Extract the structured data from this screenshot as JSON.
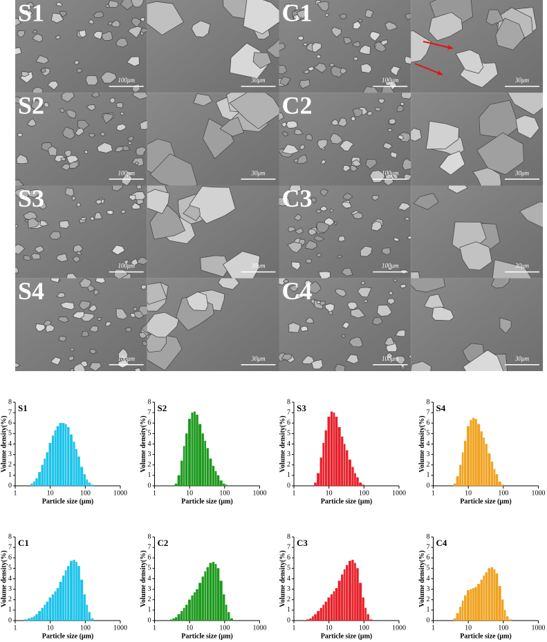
{
  "sem_panels": [
    {
      "label": "S1",
      "scale_bars": [
        "100μm",
        "30μm"
      ]
    },
    {
      "label": "C1",
      "scale_bars": [
        "100μm",
        "30μm"
      ]
    },
    {
      "label": "S2",
      "scale_bars": [
        "100μm",
        "30μm"
      ]
    },
    {
      "label": "C2",
      "scale_bars": [
        "100μm",
        "30μm"
      ]
    },
    {
      "label": "S3",
      "scale_bars": [
        "100μm",
        "30μm"
      ]
    },
    {
      "label": "C3",
      "scale_bars": [
        "100μm",
        "30μm"
      ]
    },
    {
      "label": "S4",
      "scale_bars": [
        "100μm",
        "30μm"
      ]
    },
    {
      "label": "C4",
      "scale_bars": [
        "100μm",
        "30μm"
      ]
    }
  ],
  "chart_data": [
    {
      "type": "bar",
      "title": "S1",
      "xscale": "log",
      "color": "#1cc3ea",
      "xlabel": "Particle size (μm)",
      "ylabel": "Volume density(%)",
      "xlim": [
        1,
        1000
      ],
      "xticks": [
        1,
        10,
        100,
        1000
      ],
      "ylim": [
        0,
        8
      ],
      "yticks": [
        0,
        1,
        2,
        3,
        4,
        5,
        6,
        7,
        8
      ],
      "x": [
        2,
        2.5,
        3,
        3.5,
        4,
        5,
        6,
        7,
        8,
        10,
        12,
        14,
        16,
        20,
        24,
        28,
        32,
        40,
        48,
        56,
        64,
        80,
        96,
        112,
        128,
        160,
        192,
        240,
        300
      ],
      "values": [
        0,
        0,
        0.2,
        0.4,
        0.7,
        1.3,
        2,
        2.6,
        3.2,
        4.1,
        4.8,
        5.3,
        5.7,
        6.0,
        6.0,
        5.9,
        5.6,
        4.9,
        4.2,
        3.5,
        2.8,
        1.8,
        1.1,
        0.6,
        0.3,
        0.1,
        0,
        0,
        0
      ]
    },
    {
      "type": "bar",
      "title": "S2",
      "xscale": "log",
      "color": "#1b9a1b",
      "xlabel": "Particle size (μm)",
      "ylabel": "Volume density(%)",
      "xlim": [
        1,
        1000
      ],
      "xticks": [
        1,
        10,
        100,
        1000
      ],
      "ylim": [
        0,
        8
      ],
      "yticks": [
        0,
        1,
        2,
        3,
        4,
        5,
        6,
        7,
        8
      ],
      "x": [
        2,
        2.5,
        3,
        3.5,
        4,
        5,
        6,
        7,
        8,
        10,
        12,
        14,
        16,
        20,
        24,
        28,
        32,
        40,
        48,
        56,
        64,
        80,
        96,
        112,
        128,
        160,
        192,
        240,
        300
      ],
      "values": [
        0,
        0,
        0,
        0,
        0.2,
        1.0,
        2.4,
        3.8,
        5.0,
        6.4,
        7.0,
        7.1,
        6.8,
        5.9,
        5.0,
        4.3,
        3.6,
        2.6,
        1.9,
        1.4,
        1.0,
        0.5,
        0.2,
        0.1,
        0,
        0,
        0,
        0,
        0
      ]
    },
    {
      "type": "bar",
      "title": "S3",
      "xscale": "log",
      "color": "#e8202a",
      "xlabel": "Particle size (μm)",
      "ylabel": "Volume density(%)",
      "xlim": [
        1,
        1000
      ],
      "xticks": [
        1,
        10,
        100,
        1000
      ],
      "ylim": [
        0,
        8
      ],
      "yticks": [
        0,
        1,
        2,
        3,
        4,
        5,
        6,
        7,
        8
      ],
      "x": [
        2,
        2.5,
        3,
        3.5,
        4,
        5,
        6,
        7,
        8,
        10,
        12,
        14,
        16,
        20,
        24,
        28,
        32,
        40,
        48,
        56,
        64,
        80,
        96,
        112,
        128,
        160,
        192,
        240,
        300
      ],
      "values": [
        0,
        0,
        0,
        0,
        0.3,
        1.2,
        2.7,
        4.1,
        5.3,
        6.6,
        7.1,
        7.0,
        6.6,
        5.6,
        4.7,
        4.0,
        3.4,
        2.5,
        1.8,
        1.2,
        0.8,
        0.3,
        0.1,
        0,
        0,
        0,
        0,
        0,
        0
      ]
    },
    {
      "type": "bar",
      "title": "S4",
      "xscale": "log",
      "color": "#f0a21e",
      "xlabel": "Particle size (μm)",
      "ylabel": "Volume density(%)",
      "xlim": [
        1,
        1000
      ],
      "xticks": [
        1,
        10,
        100,
        1000
      ],
      "ylim": [
        0,
        8
      ],
      "yticks": [
        0,
        1,
        2,
        3,
        4,
        5,
        6,
        7,
        8
      ],
      "x": [
        2,
        2.5,
        3,
        3.5,
        4,
        5,
        6,
        7,
        8,
        10,
        12,
        14,
        16,
        20,
        24,
        28,
        32,
        40,
        48,
        56,
        64,
        80,
        96,
        112,
        128,
        160,
        192,
        240,
        300
      ],
      "values": [
        0,
        0,
        0,
        0,
        0.2,
        0.9,
        2.0,
        3.2,
        4.3,
        5.7,
        6.3,
        6.5,
        6.4,
        5.9,
        5.2,
        4.6,
        4.0,
        3.1,
        2.3,
        1.6,
        1.1,
        0.4,
        0.1,
        0,
        0,
        0,
        0,
        0,
        0
      ]
    },
    {
      "type": "bar",
      "title": "C1",
      "xscale": "log",
      "color": "#1cc3ea",
      "xlabel": "Particle size (μm)",
      "ylabel": "Volume density(%)",
      "xlim": [
        1,
        1000
      ],
      "xticks": [
        1,
        10,
        100,
        1000
      ],
      "ylim": [
        0,
        8
      ],
      "yticks": [
        0,
        1,
        2,
        3,
        4,
        5,
        6,
        7,
        8
      ],
      "x": [
        2,
        2.5,
        3,
        3.5,
        4,
        5,
        6,
        7,
        8,
        10,
        12,
        14,
        16,
        20,
        24,
        28,
        32,
        40,
        48,
        56,
        64,
        80,
        96,
        112,
        128,
        160,
        192,
        240,
        300
      ],
      "values": [
        0.1,
        0.2,
        0.3,
        0.4,
        0.6,
        0.9,
        1.2,
        1.5,
        1.8,
        2.2,
        2.5,
        2.8,
        3.1,
        3.7,
        4.3,
        4.8,
        5.2,
        5.7,
        5.8,
        5.6,
        5.2,
        3.9,
        2.5,
        1.5,
        0.8,
        0.2,
        0,
        0,
        0
      ]
    },
    {
      "type": "bar",
      "title": "C2",
      "xscale": "log",
      "color": "#1b9a1b",
      "xlabel": "Particle size (μm)",
      "ylabel": "Volume density(%)",
      "xlim": [
        1,
        1000
      ],
      "xticks": [
        1,
        10,
        100,
        1000
      ],
      "ylim": [
        0,
        8
      ],
      "yticks": [
        0,
        1,
        2,
        3,
        4,
        5,
        6,
        7,
        8
      ],
      "x": [
        2,
        2.5,
        3,
        3.5,
        4,
        5,
        6,
        7,
        8,
        10,
        12,
        14,
        16,
        20,
        24,
        28,
        32,
        40,
        48,
        56,
        64,
        80,
        96,
        112,
        128,
        160,
        192,
        240,
        300
      ],
      "values": [
        0,
        0,
        0.1,
        0.2,
        0.3,
        0.6,
        0.9,
        1.2,
        1.5,
        2.0,
        2.4,
        2.7,
        3.0,
        3.6,
        4.2,
        4.7,
        5.1,
        5.5,
        5.6,
        5.4,
        5.0,
        3.8,
        2.5,
        1.5,
        0.8,
        0.2,
        0,
        0,
        0
      ]
    },
    {
      "type": "bar",
      "title": "C3",
      "xscale": "log",
      "color": "#e8202a",
      "xlabel": "Particle size (μm)",
      "ylabel": "Volume density(%)",
      "xlim": [
        1,
        1000
      ],
      "xticks": [
        1,
        10,
        100,
        1000
      ],
      "ylim": [
        0,
        8
      ],
      "yticks": [
        0,
        1,
        2,
        3,
        4,
        5,
        6,
        7,
        8
      ],
      "x": [
        2,
        2.5,
        3,
        3.5,
        4,
        5,
        6,
        7,
        8,
        10,
        12,
        14,
        16,
        20,
        24,
        28,
        32,
        40,
        48,
        56,
        64,
        80,
        96,
        112,
        128,
        160,
        192,
        240,
        300
      ],
      "values": [
        0,
        0.1,
        0.2,
        0.4,
        0.6,
        0.9,
        1.2,
        1.5,
        1.8,
        2.2,
        2.5,
        2.8,
        3.1,
        3.8,
        4.4,
        4.9,
        5.3,
        5.7,
        5.8,
        5.5,
        5.0,
        3.6,
        2.2,
        1.2,
        0.6,
        0.1,
        0,
        0,
        0
      ]
    },
    {
      "type": "bar",
      "title": "C4",
      "xscale": "log",
      "color": "#f0a21e",
      "xlabel": "Particle size (μm)",
      "ylabel": "Volume density(%)",
      "xlim": [
        1,
        1000
      ],
      "xticks": [
        1,
        10,
        100,
        1000
      ],
      "ylim": [
        0,
        8
      ],
      "yticks": [
        0,
        1,
        2,
        3,
        4,
        5,
        6,
        7,
        8
      ],
      "x": [
        2,
        2.5,
        3,
        3.5,
        4,
        5,
        6,
        7,
        8,
        10,
        12,
        14,
        16,
        20,
        24,
        28,
        32,
        40,
        48,
        56,
        64,
        80,
        96,
        112,
        128,
        160,
        192,
        240,
        300
      ],
      "values": [
        0,
        0,
        0,
        0,
        0.2,
        0.7,
        1.3,
        1.9,
        2.4,
        2.9,
        3.0,
        3.1,
        3.2,
        3.5,
        3.9,
        4.3,
        4.6,
        5.0,
        5.1,
        4.9,
        4.5,
        3.3,
        2.0,
        1.0,
        0.4,
        0.1,
        0,
        0,
        0
      ]
    }
  ]
}
